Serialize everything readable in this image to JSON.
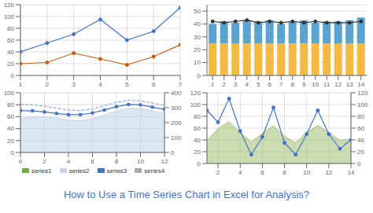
{
  "title": "How to Use a Time Series Chart in Excel for Analysis?",
  "color": "#4472C4",
  "chart_data": [
    {
      "type": "line",
      "x": [
        1,
        2,
        3,
        4,
        5,
        6,
        7
      ],
      "xlim": [
        1,
        7
      ],
      "xticks": [
        1,
        2,
        3,
        4,
        5,
        6,
        7
      ],
      "ylim": [
        0,
        120
      ],
      "yticks": [
        0,
        20,
        40,
        60,
        80,
        100,
        120
      ],
      "grid": true,
      "series": [
        {
          "color": "#4472C4",
          "marker": "o",
          "values": [
            40,
            55,
            70,
            95,
            60,
            75,
            115
          ]
        },
        {
          "color": "#C55A11",
          "marker": "o",
          "values": [
            20,
            22,
            38,
            28,
            18,
            32,
            52
          ]
        }
      ]
    },
    {
      "type": "bar",
      "stacked": true,
      "categories": [
        "1",
        "2",
        "3",
        "4",
        "5",
        "6",
        "7",
        "8",
        "9",
        "10",
        "11",
        "12",
        "13",
        "14"
      ],
      "ylim": [
        0,
        55
      ],
      "yticks": [
        0,
        10,
        20,
        30,
        40,
        50
      ],
      "grid": "y",
      "series": [
        {
          "type": "bar",
          "color": "#F4B942",
          "values": [
            25,
            25,
            25,
            25,
            25,
            25,
            25,
            25,
            25,
            25,
            25,
            25,
            25,
            25
          ]
        },
        {
          "type": "bar",
          "color": "#5BA3D0",
          "values": [
            15,
            17,
            16,
            18,
            17,
            18,
            15,
            17,
            18,
            16,
            17,
            17,
            18,
            20
          ]
        },
        {
          "type": "line",
          "color": "#333333",
          "marker": "o",
          "values": [
            42,
            41,
            42,
            43,
            41,
            42,
            41,
            42,
            41,
            42,
            41,
            41,
            41,
            42
          ]
        }
      ]
    },
    {
      "type": "line",
      "x": [
        0,
        1,
        2,
        3,
        4,
        5,
        6,
        7,
        8,
        9,
        10,
        11,
        12
      ],
      "xlim": [
        0,
        12
      ],
      "xticks": [
        0,
        2,
        4,
        6,
        8,
        10,
        12
      ],
      "ylim": [
        0,
        100
      ],
      "yticks": [
        0,
        20,
        40,
        60,
        80,
        100
      ],
      "y2lim": [
        0,
        400
      ],
      "y2ticks": [
        0,
        100,
        200,
        300,
        400
      ],
      "grid": true,
      "legend": "bottom",
      "series": [
        {
          "name": "series1",
          "color": "#70AD47",
          "values": [
            null,
            null,
            null,
            null,
            null,
            null,
            null,
            null,
            null,
            null,
            null,
            null,
            null
          ]
        },
        {
          "name": "series2",
          "type": "area",
          "color": "#C5D5EA",
          "values": [
            57.61,
            59.29,
            59.86,
            57.49,
            54.09,
            53.2,
            56.45,
            62.66,
            69.53,
            74.13,
            73.9,
            69.53,
            65.26
          ]
        },
        {
          "name": "series3",
          "color": "#4472C4",
          "marker": "s",
          "values": [
            70.35,
            69.68,
            67.82,
            65.25,
            63.28,
            63.32,
            66.15,
            71.19,
            76.78,
            80.3,
            79.72,
            75.88,
            72.29
          ]
        },
        {
          "name": "series4",
          "color": "#aaaaaa",
          "values": [
            null,
            null,
            null,
            null,
            null,
            null,
            null,
            null,
            null,
            null,
            null,
            null,
            null
          ]
        },
        {
          "color": "#8FAADC",
          "line_style": "dashed",
          "values": [
            80.35,
            79.64,
            77.57,
            74.32,
            71.16,
            70.27,
            73.04,
            78.38,
            83.97,
            87.3,
            86.5,
            82.53,
            78.97
          ]
        }
      ]
    },
    {
      "type": "area",
      "x": [
        1,
        2,
        3,
        4,
        5,
        6,
        7,
        8,
        9,
        10,
        11,
        12,
        13,
        14
      ],
      "xlim": [
        1,
        14
      ],
      "xticks": [
        2,
        4,
        6,
        8,
        10,
        12,
        14
      ],
      "ylim": [
        0,
        120
      ],
      "yticks": [
        0,
        20,
        40,
        60,
        80,
        100,
        120
      ],
      "y2lim": [
        0,
        120
      ],
      "y2ticks": [
        0,
        20,
        40,
        60,
        80,
        100,
        120
      ],
      "grid": true,
      "series": [
        {
          "type": "area",
          "color": "#A9C47F",
          "values": [
            38.86,
            59.11,
            71.13,
            52.51,
            36.68,
            50.93,
            63.86,
            46.26,
            35.32,
            52.28,
            65.0,
            52.27,
            39.43,
            41.37
          ]
        },
        {
          "type": "line",
          "color": "#4472C4",
          "marker": "o",
          "values": [
            90,
            70,
            110,
            55,
            15,
            45,
            95,
            35,
            15,
            50,
            90,
            50,
            25,
            40
          ]
        }
      ]
    }
  ]
}
